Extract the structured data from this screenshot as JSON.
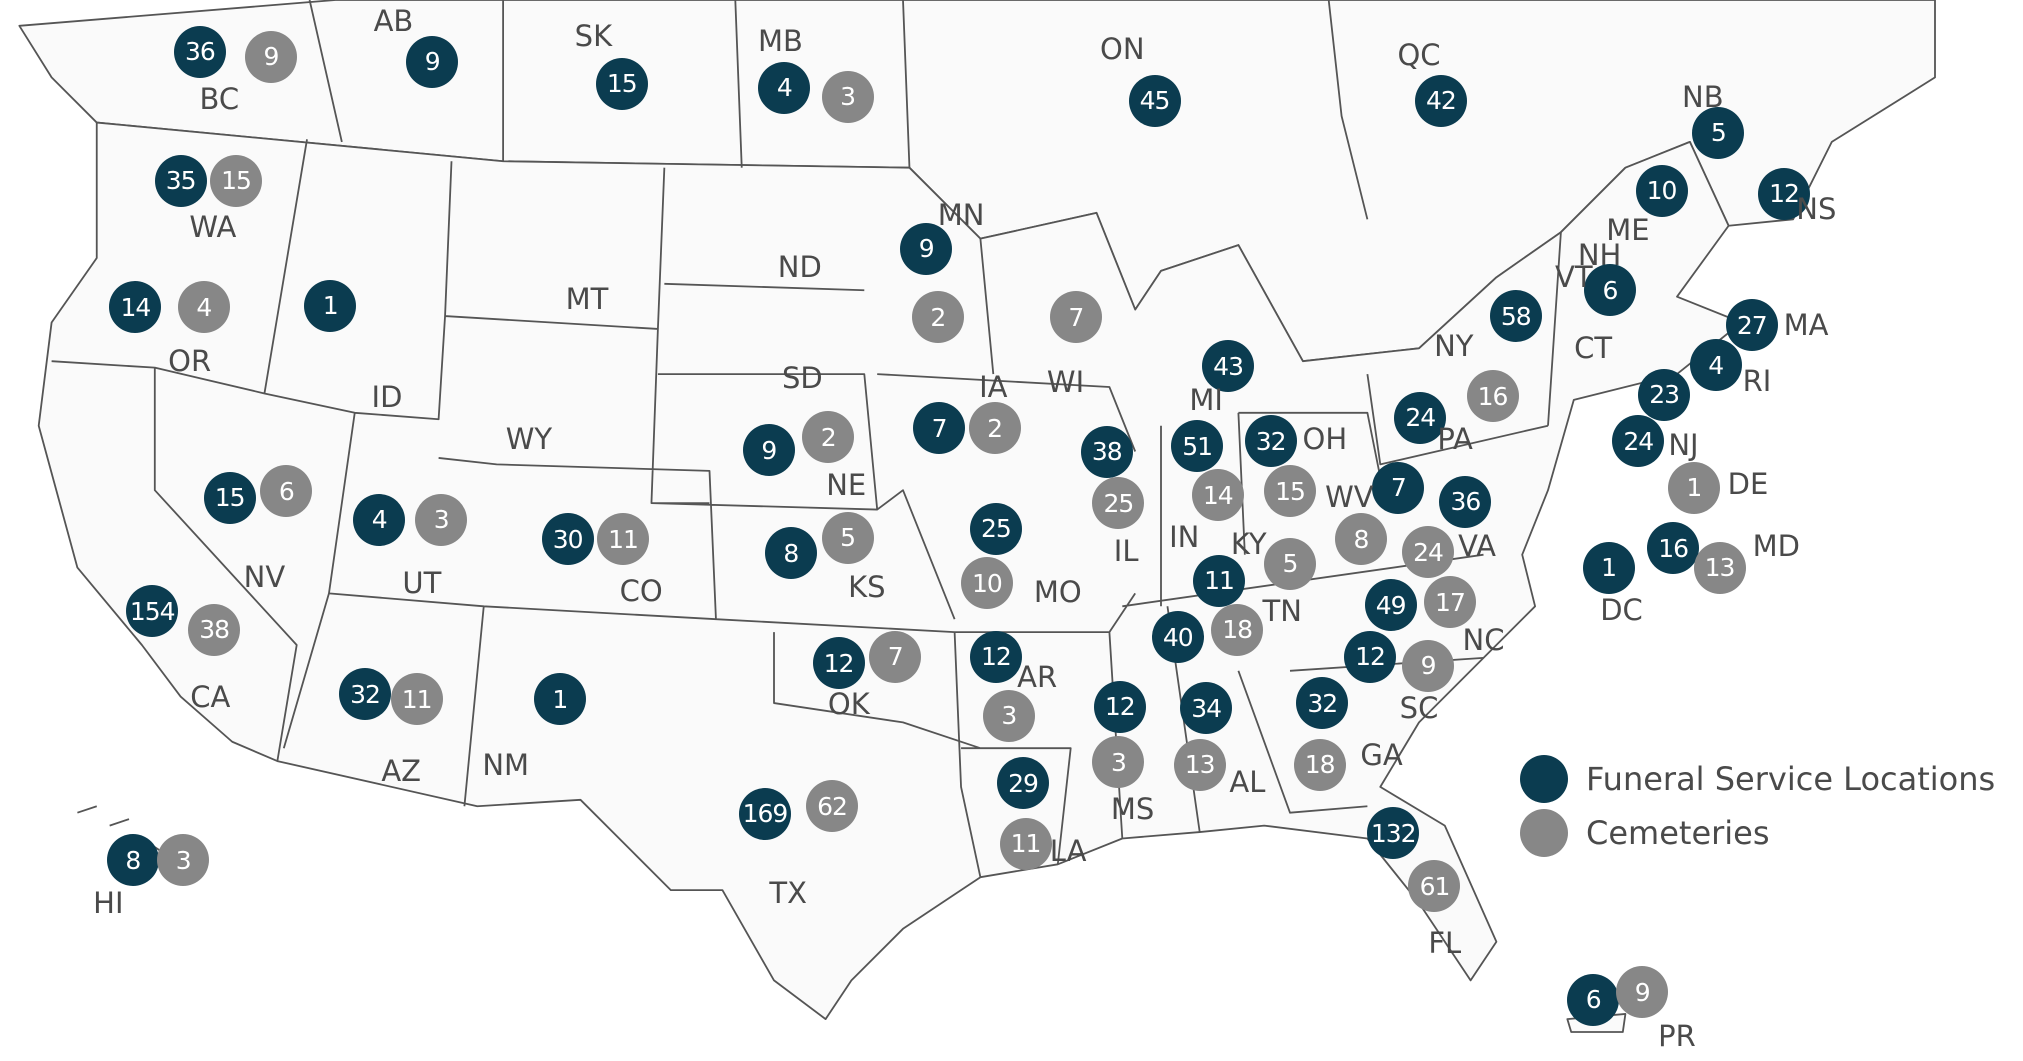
{
  "legend": {
    "funeral_label": "Funeral Service Locations",
    "cemetery_label": "Cemeteries",
    "funeral_color": "#0b3c50",
    "cemetery_color": "#878787"
  },
  "regions": [
    {
      "code": "BC",
      "funeral": 36,
      "cemeteries": 9
    },
    {
      "code": "AB",
      "funeral": 9,
      "cemeteries": null
    },
    {
      "code": "SK",
      "funeral": 15,
      "cemeteries": null
    },
    {
      "code": "MB",
      "funeral": 4,
      "cemeteries": 3
    },
    {
      "code": "ON",
      "funeral": 45,
      "cemeteries": null
    },
    {
      "code": "QC",
      "funeral": 42,
      "cemeteries": null
    },
    {
      "code": "NB",
      "funeral": 5,
      "cemeteries": null
    },
    {
      "code": "NS",
      "funeral": 12,
      "cemeteries": null
    },
    {
      "code": "ME",
      "funeral": 10,
      "cemeteries": null
    },
    {
      "code": "NH",
      "funeral": null,
      "cemeteries": null
    },
    {
      "code": "VT",
      "funeral": 6,
      "cemeteries": null
    },
    {
      "code": "MA",
      "funeral": 27,
      "cemeteries": null
    },
    {
      "code": "RI",
      "funeral": 4,
      "cemeteries": null
    },
    {
      "code": "CT",
      "funeral": 23,
      "cemeteries": null
    },
    {
      "code": "NJ",
      "funeral": 24,
      "cemeteries": null
    },
    {
      "code": "DE",
      "funeral": null,
      "cemeteries": 1
    },
    {
      "code": "MD",
      "funeral": 16,
      "cemeteries": 13
    },
    {
      "code": "DC",
      "funeral": 1,
      "cemeteries": null
    },
    {
      "code": "NY",
      "funeral": 58,
      "cemeteries": null
    },
    {
      "code": "PA",
      "funeral": 24,
      "cemeteries": 16
    },
    {
      "code": "WA",
      "funeral": 35,
      "cemeteries": 15
    },
    {
      "code": "OR",
      "funeral": 14,
      "cemeteries": 4
    },
    {
      "code": "ID",
      "funeral": 1,
      "cemeteries": null
    },
    {
      "code": "MT",
      "funeral": null,
      "cemeteries": null
    },
    {
      "code": "ND",
      "funeral": null,
      "cemeteries": null
    },
    {
      "code": "MN",
      "funeral": 9,
      "cemeteries": 2
    },
    {
      "code": "WI",
      "funeral": null,
      "cemeteries": 7
    },
    {
      "code": "SD",
      "funeral": null,
      "cemeteries": null
    },
    {
      "code": "WY",
      "funeral": null,
      "cemeteries": null
    },
    {
      "code": "NV",
      "funeral": 15,
      "cemeteries": 6
    },
    {
      "code": "UT",
      "funeral": 4,
      "cemeteries": 3
    },
    {
      "code": "CO",
      "funeral": 30,
      "cemeteries": 11
    },
    {
      "code": "NE",
      "funeral": 9,
      "cemeteries": 2
    },
    {
      "code": "IA",
      "funeral": 7,
      "cemeteries": 2
    },
    {
      "code": "KS",
      "funeral": 8,
      "cemeteries": 5
    },
    {
      "code": "MO",
      "funeral": 25,
      "cemeteries": 10
    },
    {
      "code": "IL",
      "funeral": 38,
      "cemeteries": 25
    },
    {
      "code": "IN",
      "funeral": 51,
      "cemeteries": 14
    },
    {
      "code": "MI",
      "funeral": 43,
      "cemeteries": null
    },
    {
      "code": "OH",
      "funeral": 32,
      "cemeteries": 15
    },
    {
      "code": "WV",
      "funeral": 7,
      "cemeteries": 8
    },
    {
      "code": "VA",
      "funeral": 36,
      "cemeteries": 24
    },
    {
      "code": "KY",
      "funeral": 11,
      "cemeteries": 5
    },
    {
      "code": "TN",
      "funeral": 40,
      "cemeteries": 18
    },
    {
      "code": "NC",
      "funeral": 49,
      "cemeteries": 17
    },
    {
      "code": "SC",
      "funeral": 12,
      "cemeteries": 9
    },
    {
      "code": "GA",
      "funeral": 32,
      "cemeteries": 18
    },
    {
      "code": "FL",
      "funeral": 132,
      "cemeteries": 61
    },
    {
      "code": "AL",
      "funeral": 34,
      "cemeteries": 13
    },
    {
      "code": "MS",
      "funeral": 12,
      "cemeteries": 3
    },
    {
      "code": "LA",
      "funeral": 29,
      "cemeteries": 11
    },
    {
      "code": "AR",
      "funeral": 12,
      "cemeteries": 3
    },
    {
      "code": "OK",
      "funeral": 12,
      "cemeteries": 7
    },
    {
      "code": "TX",
      "funeral": 169,
      "cemeteries": 62
    },
    {
      "code": "NM",
      "funeral": 1,
      "cemeteries": null
    },
    {
      "code": "AZ",
      "funeral": 32,
      "cemeteries": 11
    },
    {
      "code": "CA",
      "funeral": 154,
      "cemeteries": 38
    },
    {
      "code": "HI",
      "funeral": 8,
      "cemeteries": 3
    },
    {
      "code": "PR",
      "funeral": 6,
      "cemeteries": 9
    }
  ]
}
